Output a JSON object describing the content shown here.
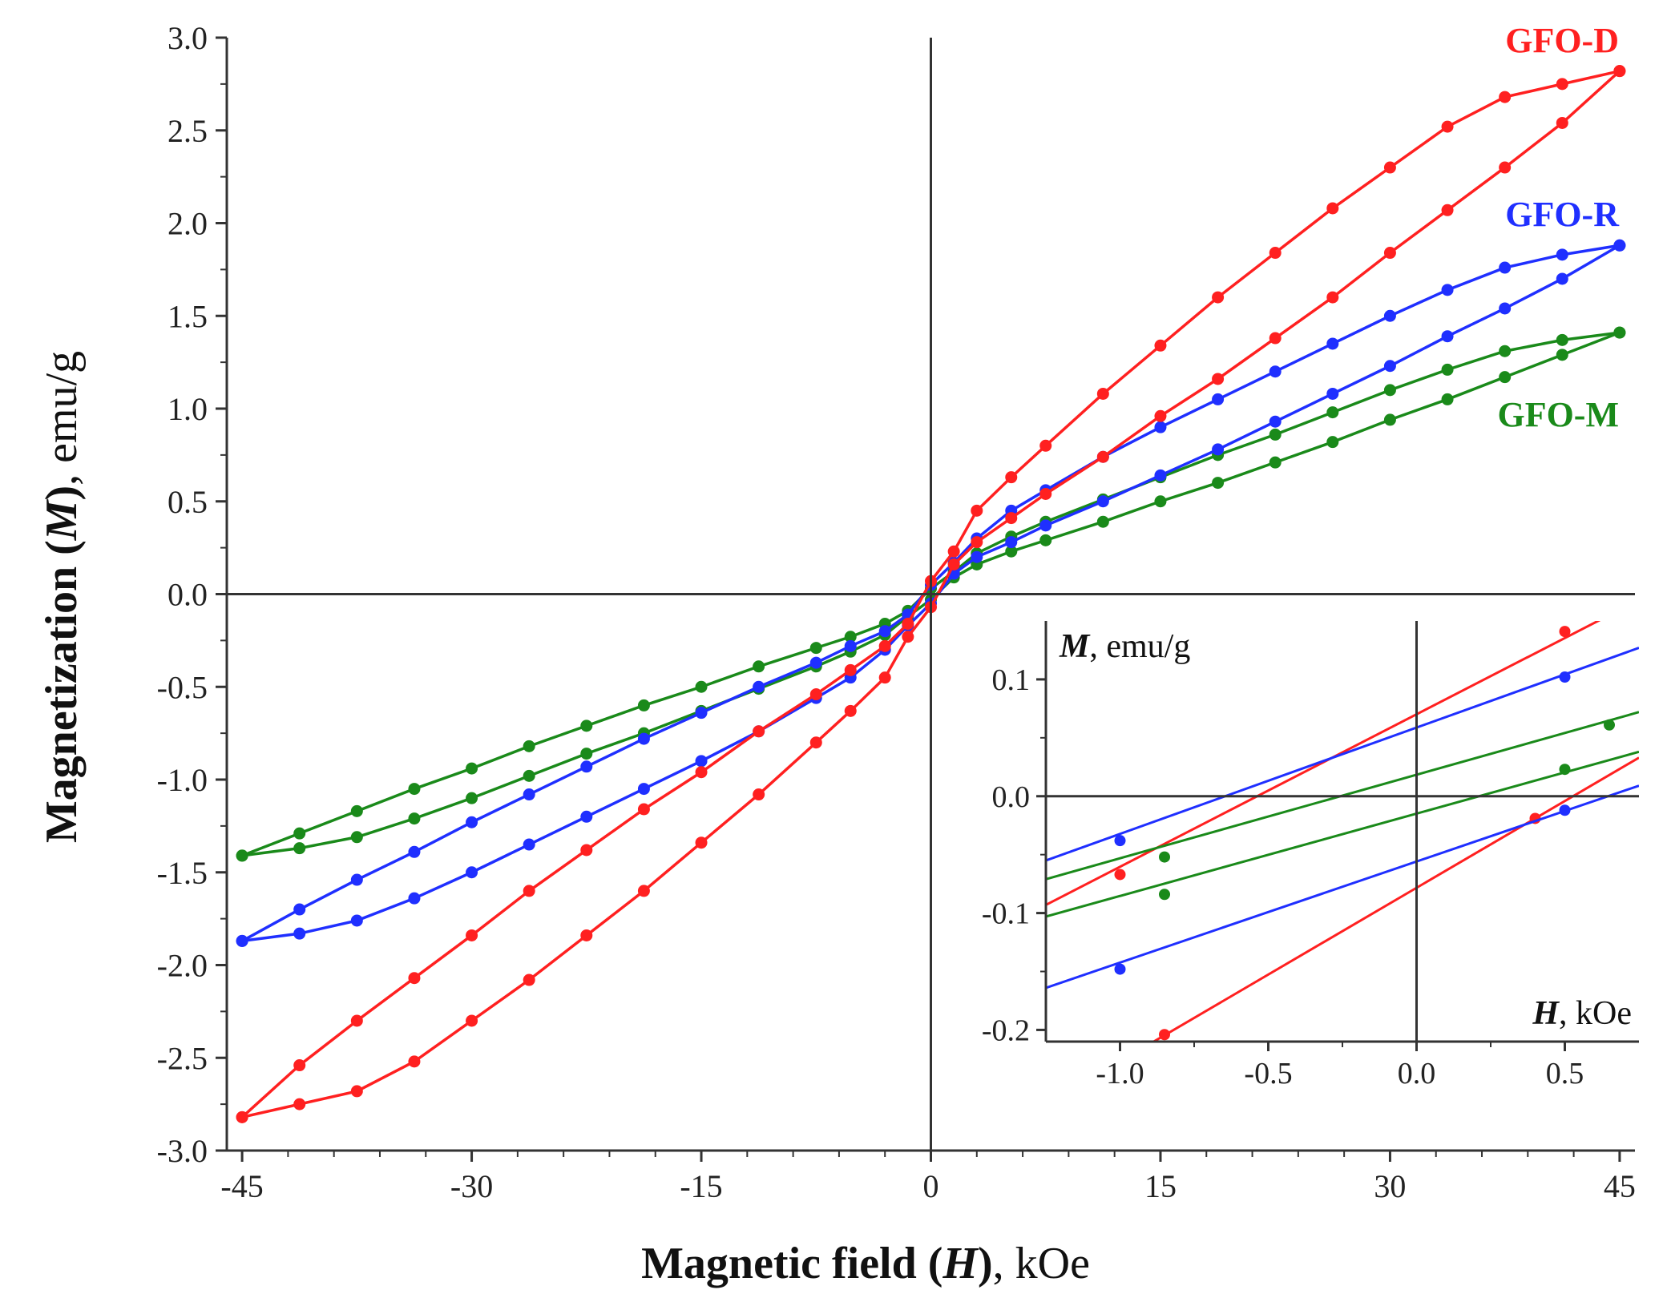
{
  "chart_data": {
    "type": "line",
    "xlabel": {
      "bold": "Magnetic field (",
      "italic": "H",
      "bold_close": ")",
      "unit": ", kOe"
    },
    "ylabel": {
      "bold": "Magnetization (",
      "italic": "M",
      "bold_close": ")",
      "unit": ", emu/g"
    },
    "xlim": [
      -46,
      46
    ],
    "ylim": [
      -3.0,
      3.0
    ],
    "xticks": [
      -45,
      -30,
      -15,
      0,
      15,
      30,
      45
    ],
    "xtick_labels": [
      "-45",
      "-30",
      "-15",
      "0",
      "15",
      "30",
      "45"
    ],
    "yticks": [
      -3.0,
      -2.5,
      -2.0,
      -1.5,
      -1.0,
      -0.5,
      0.0,
      0.5,
      1.0,
      1.5,
      2.0,
      2.5,
      3.0
    ],
    "ytick_labels": [
      "-3.0",
      "-2.5",
      "-2.0",
      "-1.5",
      "-1.0",
      "-0.5",
      "0.0",
      "0.5",
      "1.0",
      "1.5",
      "2.0",
      "2.5",
      "3.0"
    ],
    "grid": false,
    "series": [
      {
        "name": "GFO-D",
        "color": "#ff2020",
        "label_position": "top-right",
        "upper_x": [
          -45,
          -41.25,
          -37.5,
          -33.75,
          -30,
          -26.25,
          -22.5,
          -18.75,
          -15,
          -11.25,
          -7.5,
          -5.25,
          -3,
          -1.5,
          0,
          1.5,
          3,
          5.25,
          7.5,
          11.25,
          15,
          18.75,
          22.5,
          26.25,
          30,
          33.75,
          37.5,
          41.25,
          45
        ],
        "upper_y": [
          -2.82,
          -2.54,
          -2.3,
          -2.07,
          -1.84,
          -1.6,
          -1.38,
          -1.16,
          -0.96,
          -0.74,
          -0.54,
          -0.41,
          -0.28,
          -0.16,
          0.07,
          0.23,
          0.45,
          0.63,
          0.8,
          1.08,
          1.34,
          1.6,
          1.84,
          2.08,
          2.3,
          2.52,
          2.68,
          2.75,
          2.82
        ],
        "lower_x": [
          -45,
          -41.25,
          -37.5,
          -33.75,
          -30,
          -26.25,
          -22.5,
          -18.75,
          -15,
          -11.25,
          -7.5,
          -5.25,
          -3,
          -1.5,
          0,
          1.5,
          3,
          5.25,
          7.5,
          11.25,
          15,
          18.75,
          22.5,
          26.25,
          30,
          33.75,
          37.5,
          41.25,
          45
        ],
        "lower_y": [
          -2.82,
          -2.75,
          -2.68,
          -2.52,
          -2.3,
          -2.08,
          -1.84,
          -1.6,
          -1.34,
          -1.08,
          -0.8,
          -0.63,
          -0.45,
          -0.23,
          -0.07,
          0.16,
          0.28,
          0.41,
          0.54,
          0.74,
          0.96,
          1.16,
          1.38,
          1.6,
          1.84,
          2.07,
          2.3,
          2.54,
          2.82
        ]
      },
      {
        "name": "GFO-R",
        "color": "#1f2fff",
        "label_position": "right",
        "upper_x": [
          -45,
          -41.25,
          -37.5,
          -33.75,
          -30,
          -26.25,
          -22.5,
          -18.75,
          -15,
          -11.25,
          -7.5,
          -5.25,
          -3,
          -1.5,
          0,
          1.5,
          3,
          5.25,
          7.5,
          11.25,
          15,
          18.75,
          22.5,
          26.25,
          30,
          33.75,
          37.5,
          41.25,
          45
        ],
        "upper_y": [
          -1.87,
          -1.7,
          -1.54,
          -1.39,
          -1.23,
          -1.08,
          -0.93,
          -0.78,
          -0.64,
          -0.5,
          -0.37,
          -0.28,
          -0.2,
          -0.11,
          0.05,
          0.17,
          0.3,
          0.45,
          0.56,
          0.74,
          0.9,
          1.05,
          1.2,
          1.35,
          1.5,
          1.64,
          1.76,
          1.83,
          1.88
        ],
        "lower_x": [
          -45,
          -41.25,
          -37.5,
          -33.75,
          -30,
          -26.25,
          -22.5,
          -18.75,
          -15,
          -11.25,
          -7.5,
          -5.25,
          -3,
          -1.5,
          0,
          1.5,
          3,
          5.25,
          7.5,
          11.25,
          15,
          18.75,
          22.5,
          26.25,
          30,
          33.75,
          37.5,
          41.25,
          45
        ],
        "lower_y": [
          -1.87,
          -1.83,
          -1.76,
          -1.64,
          -1.5,
          -1.35,
          -1.2,
          -1.05,
          -0.9,
          -0.74,
          -0.56,
          -0.45,
          -0.3,
          -0.17,
          -0.05,
          0.11,
          0.2,
          0.28,
          0.37,
          0.5,
          0.64,
          0.78,
          0.93,
          1.08,
          1.23,
          1.39,
          1.54,
          1.7,
          1.88
        ]
      },
      {
        "name": "GFO-M",
        "color": "#1a8a1a",
        "label_position": "right",
        "upper_x": [
          -45,
          -41.25,
          -37.5,
          -33.75,
          -30,
          -26.25,
          -22.5,
          -18.75,
          -15,
          -11.25,
          -7.5,
          -5.25,
          -3,
          -1.5,
          0,
          1.5,
          3,
          5.25,
          7.5,
          11.25,
          15,
          18.75,
          22.5,
          26.25,
          30,
          33.75,
          37.5,
          41.25,
          45
        ],
        "upper_y": [
          -1.41,
          -1.29,
          -1.17,
          -1.05,
          -0.94,
          -0.82,
          -0.71,
          -0.6,
          -0.5,
          -0.39,
          -0.29,
          -0.23,
          -0.16,
          -0.09,
          0.03,
          0.12,
          0.22,
          0.31,
          0.39,
          0.51,
          0.63,
          0.75,
          0.86,
          0.98,
          1.1,
          1.21,
          1.31,
          1.37,
          1.41
        ],
        "lower_x": [
          -45,
          -41.25,
          -37.5,
          -33.75,
          -30,
          -26.25,
          -22.5,
          -18.75,
          -15,
          -11.25,
          -7.5,
          -5.25,
          -3,
          -1.5,
          0,
          1.5,
          3,
          5.25,
          7.5,
          11.25,
          15,
          18.75,
          22.5,
          26.25,
          30,
          33.75,
          37.5,
          41.25,
          45
        ],
        "lower_y": [
          -1.41,
          -1.37,
          -1.31,
          -1.21,
          -1.1,
          -0.98,
          -0.86,
          -0.75,
          -0.63,
          -0.51,
          -0.39,
          -0.31,
          -0.22,
          -0.12,
          -0.03,
          0.09,
          0.16,
          0.23,
          0.29,
          0.39,
          0.5,
          0.6,
          0.71,
          0.82,
          0.94,
          1.05,
          1.17,
          1.29,
          1.41
        ]
      }
    ],
    "inset": {
      "xlabel": {
        "italic_bold": "H",
        "unit": ", kOe"
      },
      "ylabel": {
        "italic_bold": "M",
        "unit": ", emu/g"
      },
      "xlim": [
        -1.25,
        0.75
      ],
      "ylim": [
        -0.21,
        0.15
      ],
      "xticks": [
        -1.0,
        -0.5,
        0.0,
        0.5
      ],
      "xtick_labels": [
        "-1.0",
        "-0.5",
        "0.0",
        "0.5"
      ],
      "yticks": [
        0.1,
        0.0,
        -0.1,
        -0.2
      ],
      "ytick_labels": [
        "0.1",
        "0.0",
        "-0.1",
        "-0.2"
      ],
      "lines": [
        {
          "series": "GFO-D",
          "branch": "upper",
          "x": [
            -1.25,
            0.75
          ],
          "y": [
            -0.093,
            0.168
          ],
          "markers_x": [
            -1.0,
            0.5
          ],
          "markers_y": [
            -0.067,
            0.141
          ]
        },
        {
          "series": "GFO-D",
          "branch": "lower",
          "x": [
            -1.25,
            0.75
          ],
          "y": [
            -0.264,
            0.033
          ],
          "markers_x": [
            -0.85,
            0.4
          ],
          "markers_y": [
            -0.204,
            -0.019
          ]
        },
        {
          "series": "GFO-R",
          "branch": "upper",
          "x": [
            -1.25,
            0.75
          ],
          "y": [
            -0.055,
            0.127
          ],
          "markers_x": [
            -1.0,
            0.5
          ],
          "markers_y": [
            -0.038,
            0.102
          ]
        },
        {
          "series": "GFO-R",
          "branch": "lower",
          "x": [
            -1.25,
            0.75
          ],
          "y": [
            -0.164,
            0.009
          ],
          "markers_x": [
            -1.0,
            0.5
          ],
          "markers_y": [
            -0.148,
            -0.012
          ]
        },
        {
          "series": "GFO-M",
          "branch": "upper",
          "x": [
            -1.25,
            0.75
          ],
          "y": [
            -0.071,
            0.072
          ],
          "markers_x": [
            -0.85,
            0.65
          ],
          "markers_y": [
            -0.052,
            0.061
          ]
        },
        {
          "series": "GFO-M",
          "branch": "lower",
          "x": [
            -1.25,
            0.75
          ],
          "y": [
            -0.103,
            0.038
          ],
          "markers_x": [
            -0.85,
            0.5
          ],
          "markers_y": [
            -0.084,
            0.023
          ]
        }
      ]
    }
  }
}
